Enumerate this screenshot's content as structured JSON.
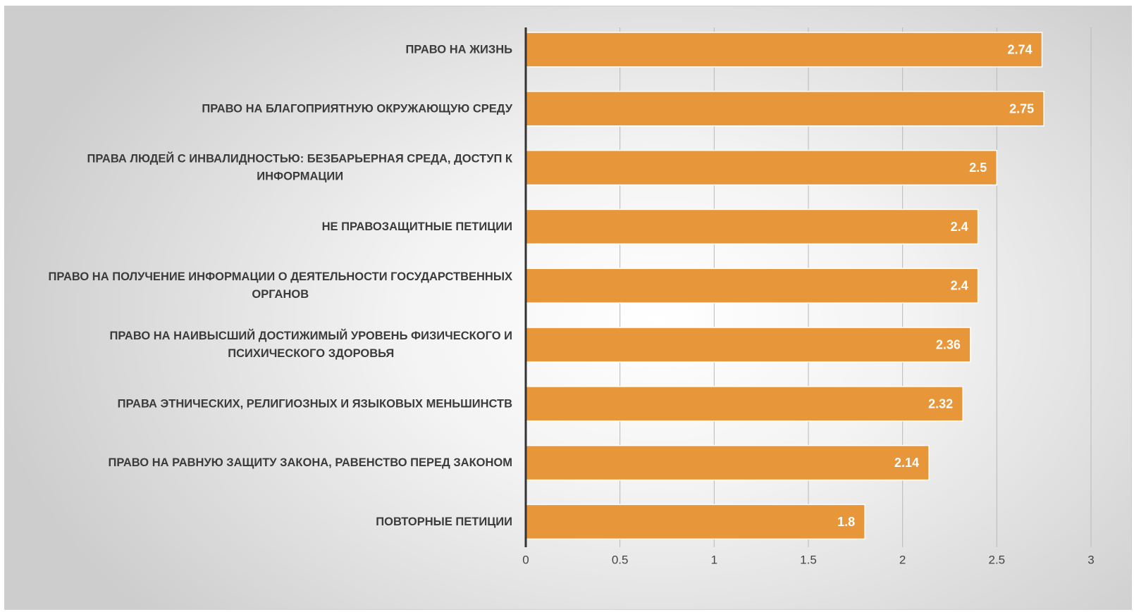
{
  "chart_data": {
    "type": "bar",
    "orientation": "horizontal",
    "categories": [
      [
        "ПРАВО НА ЖИЗНЬ"
      ],
      [
        "ПРАВО НА БЛАГОПРИЯТНУЮ ОКРУЖАЮЩУЮ СРЕДУ"
      ],
      [
        "ПРАВА ЛЮДЕЙ С ИНВАЛИДНОСТЬЮ: БЕЗБАРЬЕРНАЯ СРЕДА, ДОСТУП К",
        "ИНФОРМАЦИИ"
      ],
      [
        "НЕ ПРАВОЗАЩИТНЫЕ ПЕТИЦИИ"
      ],
      [
        "ПРАВО НА ПОЛУЧЕНИЕ ИНФОРМАЦИИ О ДЕЯТЕЛЬНОСТИ ГОСУДАРСТВЕННЫХ",
        "ОРГАНОВ"
      ],
      [
        "ПРАВО НА НАИВЫСШИЙ ДОСТИЖИМЫЙ УРОВЕНЬ ФИЗИЧЕСКОГО И",
        "ПСИХИЧЕСКОГО ЗДОРОВЬЯ"
      ],
      [
        "ПРАВА ЭТНИЧЕСКИХ, РЕЛИГИОЗНЫХ И ЯЗЫКОВЫХ МЕНЬШИНСТВ"
      ],
      [
        "ПРАВО НА РАВНУЮ ЗАЩИТУ ЗАКОНА, РАВЕНСТВО ПЕРЕД ЗАКОНОМ"
      ],
      [
        "ПОВТОРНЫЕ ПЕТИЦИИ"
      ]
    ],
    "values": [
      2.74,
      2.75,
      2.5,
      2.4,
      2.4,
      2.36,
      2.32,
      2.14,
      1.8
    ],
    "data_labels": [
      "2.74",
      "2.75",
      "2.5",
      "2.4",
      "2.4",
      "2.36",
      "2.32",
      "2.14",
      "1.8"
    ],
    "xlim": [
      0,
      3
    ],
    "xticks": [
      0,
      0.5,
      1,
      1.5,
      2,
      2.5,
      3
    ],
    "xtick_labels": [
      "0",
      "0.5",
      "1",
      "1.5",
      "2",
      "2.5",
      "3"
    ],
    "grid": "vertical",
    "legend": "none",
    "title": "",
    "xlabel": "",
    "ylabel": "",
    "colors": {
      "bar": "#E8963A",
      "label_text": "#3B3B3B",
      "data_label_text": "#FFFFFF"
    }
  }
}
